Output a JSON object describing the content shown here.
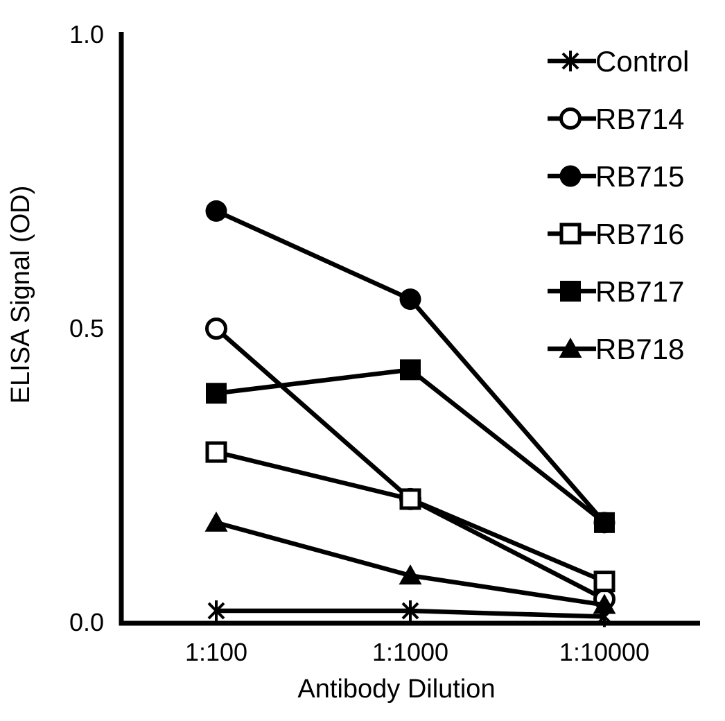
{
  "chart_data": {
    "type": "line",
    "title": "",
    "xlabel": "Antibody Dilution",
    "ylabel": "ELISA Signal (OD)",
    "categories": [
      "1:100",
      "1:1000",
      "1:10000"
    ],
    "y_ticks": [
      {
        "value": 0.0,
        "label": "0.0"
      },
      {
        "value": 0.5,
        "label": "0.5"
      },
      {
        "value": 1.0,
        "label": "1.0"
      }
    ],
    "ylim": [
      0.0,
      1.0
    ],
    "grid": false,
    "legend_position": "top-right",
    "background_color": "#ffffff",
    "axis_color": "#000000",
    "series": [
      {
        "name": "Control",
        "marker": "asterisk",
        "color": "#000000",
        "values": [
          0.02,
          0.02,
          0.01
        ]
      },
      {
        "name": "RB714",
        "marker": "circle-open",
        "color": "#000000",
        "values": [
          0.5,
          0.21,
          0.04
        ]
      },
      {
        "name": "RB715",
        "marker": "circle-filled",
        "color": "#000000",
        "values": [
          0.7,
          0.55,
          0.17
        ]
      },
      {
        "name": "RB716",
        "marker": "square-open",
        "color": "#000000",
        "values": [
          0.29,
          0.21,
          0.07
        ]
      },
      {
        "name": "RB717",
        "marker": "square-filled",
        "color": "#000000",
        "values": [
          0.39,
          0.43,
          0.17
        ]
      },
      {
        "name": "RB718",
        "marker": "triangle-filled",
        "color": "#000000",
        "values": [
          0.17,
          0.08,
          0.03
        ]
      }
    ]
  }
}
